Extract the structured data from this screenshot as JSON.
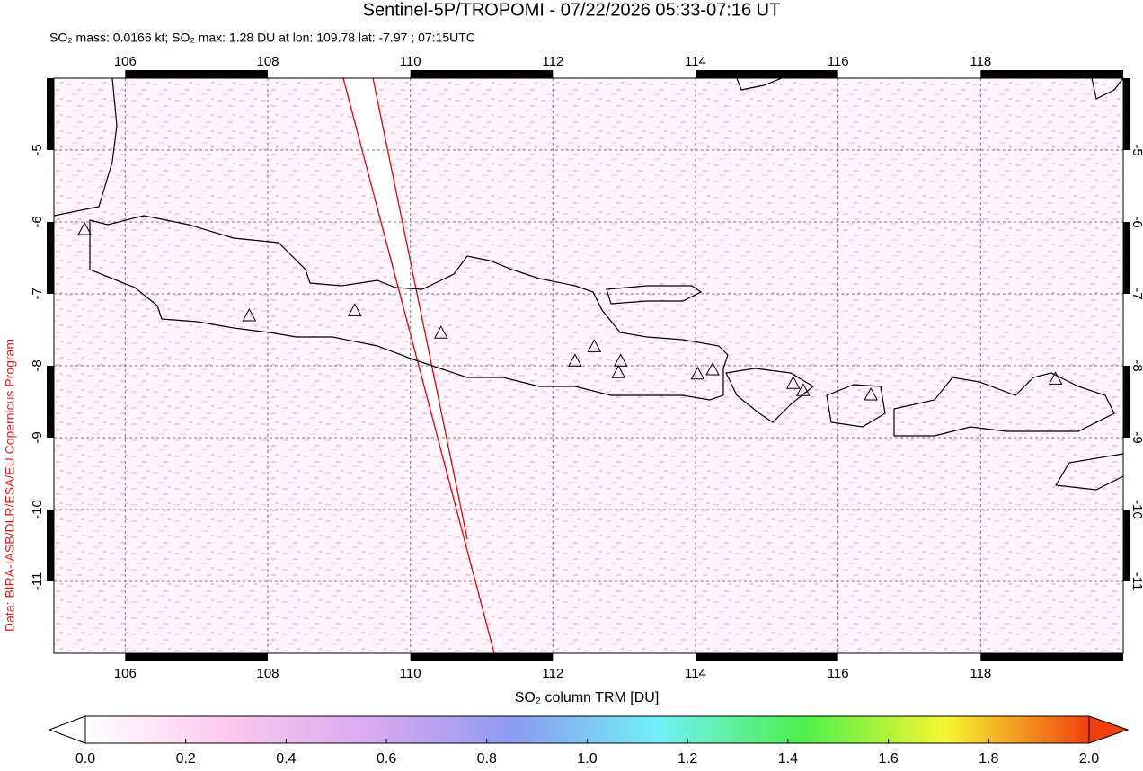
{
  "chart_data": {
    "type": "map",
    "title": "Sentinel-5P/TROPOMI - 07/22/2026 05:33-07:16 UT",
    "subtitle": "SO₂ mass: 0.0166 kt; SO₂ max: 1.28 DU at lon: 109.78 lat: -7.97 ; 07:15UTC",
    "source": "Data: BIRA-IASB/DLR/ESA/EU Copernicus Program",
    "xlim": [
      105,
      120
    ],
    "ylim": [
      -12,
      -4
    ],
    "xticks": [
      106,
      108,
      110,
      112,
      114,
      116,
      118
    ],
    "yticks": [
      -5,
      -6,
      -7,
      -8,
      -9,
      -10,
      -11
    ],
    "grid": true,
    "volcanoes": {
      "lon": [
        107.74,
        109.22,
        110.43,
        112.31,
        112.58,
        112.95,
        112.92,
        114.03,
        114.24,
        115.37,
        115.51,
        116.46,
        119.05,
        105.43
      ],
      "lat": [
        -7.3,
        -7.23,
        -7.54,
        -7.93,
        -7.73,
        -7.93,
        -8.09,
        -8.11,
        -8.05,
        -8.24,
        -8.34,
        -8.4,
        -8.18,
        -6.1
      ]
    },
    "colorbar": {
      "label": "SO₂ column TRM [DU]",
      "range": [
        0,
        2
      ],
      "ticks": [
        {
          "value": 0,
          "label": "0.0"
        },
        0.2,
        0.4,
        0.6,
        0.8,
        {
          "value": 1,
          "label": "1.0"
        },
        1.2,
        1.4,
        1.6,
        1.8,
        {
          "value": 2,
          "label": "2.0"
        }
      ],
      "colors": [
        "#ffffff",
        "#fbc8ec",
        "#d8a8f0",
        "#8c9cf2",
        "#70f0f6",
        "#4cf04c",
        "#f6f630",
        "#f04010"
      ]
    }
  }
}
